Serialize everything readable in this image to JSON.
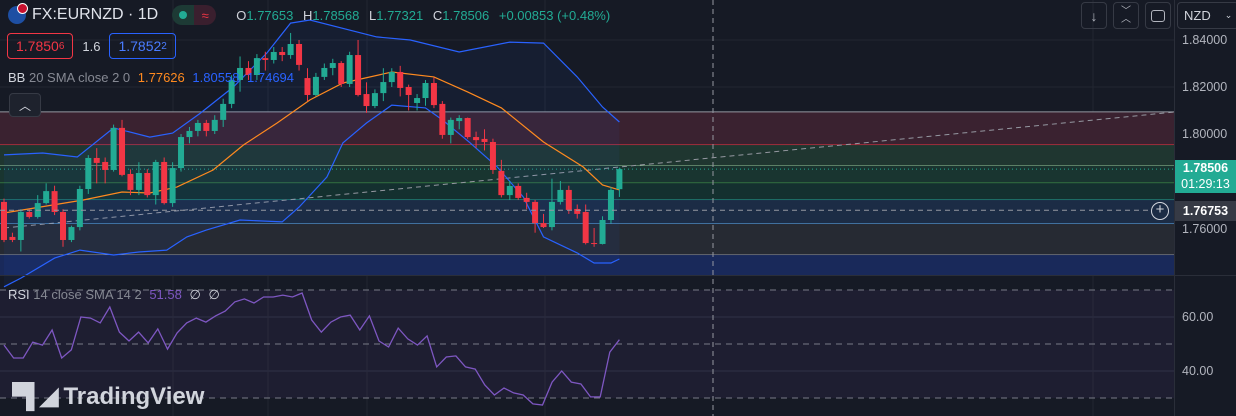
{
  "header": {
    "symbol": "FX:EURNZD · 1D",
    "symbol_icon": "eur-nzd-flag-icon",
    "status_market": "market-open-dot",
    "status_delay": "≈",
    "ohlc": {
      "o_label": "O",
      "o": "1.77653",
      "h_label": "H",
      "h": "1.78568",
      "l_label": "L",
      "l": "1.77321",
      "c_label": "C",
      "c": "1.78506",
      "change": "+0.00853 (+0.48%)"
    },
    "sell_price_main": "1.7850",
    "sell_price_pip": "6",
    "spread": "1.6",
    "buy_price_main": "1.7852",
    "buy_price_pip": "2",
    "bb_legend": {
      "name": "BB",
      "params": "20 SMA close 2 0",
      "basis": "1.77626",
      "upper": "1.80558",
      "lower": "1.74694"
    },
    "collapse_icon": "chevron-up-icon"
  },
  "rsi_legend": {
    "name": "RSI",
    "params": "14 close SMA 14 2",
    "value": "51.58",
    "extra1": "∅",
    "extra2": "∅"
  },
  "toolbar": {
    "buttons": [
      "arrow-down-icon",
      "collapse-arrows-icon",
      "fullscreen-icon"
    ],
    "currency": "NZD"
  },
  "price_axis": {
    "ticks": [
      "1.84000",
      "1.82000",
      "1.80000",
      "1.76000"
    ],
    "last_price": "1.78506",
    "countdown": "01:29:13",
    "crosshair_price": "1.76753"
  },
  "rsi_axis": {
    "ticks": [
      "60.00",
      "40.00"
    ]
  },
  "watermark": "TradingView",
  "colors": {
    "up": "#22ab94",
    "down": "#f23645",
    "bb_basis": "#ff8a1f",
    "bb_band": "#2962ff",
    "rsi": "#7e57c2",
    "background": "#161a25"
  },
  "chart_data": {
    "type": "candlestick",
    "ylim": [
      1.74,
      1.857
    ],
    "yticks": [
      1.84,
      1.82,
      1.8,
      1.78,
      1.76
    ],
    "candles": [
      [
        1.7711,
        1.7725,
        1.754,
        1.7549
      ],
      [
        1.7562,
        1.758,
        1.754,
        1.7549
      ],
      [
        1.7549,
        1.768,
        1.75,
        1.7668
      ],
      [
        1.7668,
        1.768,
        1.764,
        1.7647
      ],
      [
        1.7647,
        1.774,
        1.764,
        1.7706
      ],
      [
        1.7706,
        1.779,
        1.77,
        1.7757
      ],
      [
        1.7757,
        1.778,
        1.7655,
        1.7668
      ],
      [
        1.7668,
        1.768,
        1.752,
        1.7549
      ],
      [
        1.7549,
        1.761,
        1.754,
        1.7604
      ],
      [
        1.7604,
        1.778,
        1.759,
        1.7766
      ],
      [
        1.7766,
        1.791,
        1.7745,
        1.7898
      ],
      [
        1.7898,
        1.794,
        1.779,
        1.7877
      ],
      [
        1.7881,
        1.79,
        1.779,
        1.7847
      ],
      [
        1.7847,
        1.804,
        1.784,
        1.8026
      ],
      [
        1.8026,
        1.806,
        1.782,
        1.7826
      ],
      [
        1.783,
        1.785,
        1.774,
        1.7762
      ],
      [
        1.7762,
        1.788,
        1.774,
        1.7834
      ],
      [
        1.7834,
        1.785,
        1.773,
        1.774
      ],
      [
        1.774,
        1.789,
        1.77,
        1.7881
      ],
      [
        1.7881,
        1.79,
        1.77,
        1.7706
      ],
      [
        1.7706,
        1.788,
        1.769,
        1.7855
      ],
      [
        1.7855,
        1.8,
        1.784,
        1.7987
      ],
      [
        1.7987,
        1.803,
        1.796,
        1.8013
      ],
      [
        1.8013,
        1.806,
        1.799,
        1.8047
      ],
      [
        1.8047,
        1.806,
        1.799,
        1.8013
      ],
      [
        1.8013,
        1.808,
        1.8,
        1.806
      ],
      [
        1.806,
        1.815,
        1.803,
        1.8128
      ],
      [
        1.8128,
        1.825,
        1.811,
        1.823
      ],
      [
        1.823,
        1.833,
        1.818,
        1.8281
      ],
      [
        1.8281,
        1.831,
        1.823,
        1.8251
      ],
      [
        1.8251,
        1.834,
        1.823,
        1.8323
      ],
      [
        1.8323,
        1.835,
        1.827,
        1.8315
      ],
      [
        1.8315,
        1.837,
        1.83,
        1.8349
      ],
      [
        1.8349,
        1.837,
        1.831,
        1.8336
      ],
      [
        1.8336,
        1.843,
        1.832,
        1.8383
      ],
      [
        1.8383,
        1.84,
        1.827,
        1.8294
      ],
      [
        1.8238,
        1.828,
        1.814,
        1.8166
      ],
      [
        1.8166,
        1.826,
        1.816,
        1.8243
      ],
      [
        1.8243,
        1.83,
        1.823,
        1.8281
      ],
      [
        1.8281,
        1.832,
        1.825,
        1.8302
      ],
      [
        1.8302,
        1.831,
        1.82,
        1.8213
      ],
      [
        1.8213,
        1.835,
        1.82,
        1.8336
      ],
      [
        1.8336,
        1.84,
        1.816,
        1.8166
      ],
      [
        1.817,
        1.822,
        1.809,
        1.8119
      ],
      [
        1.8119,
        1.819,
        1.811,
        1.8174
      ],
      [
        1.8174,
        1.828,
        1.814,
        1.8221
      ],
      [
        1.8221,
        1.828,
        1.82,
        1.8264
      ],
      [
        1.8264,
        1.829,
        1.816,
        1.8196
      ],
      [
        1.82,
        1.821,
        1.81,
        1.8166
      ],
      [
        1.8132,
        1.817,
        1.81,
        1.8153
      ],
      [
        1.8153,
        1.823,
        1.812,
        1.8217
      ],
      [
        1.8217,
        1.824,
        1.811,
        1.8123
      ],
      [
        1.8128,
        1.814,
        1.798,
        1.7996
      ],
      [
        1.7996,
        1.807,
        1.796,
        1.806
      ],
      [
        1.8055,
        1.808,
        1.802,
        1.8068
      ],
      [
        1.8068,
        1.807,
        1.798,
        1.7987
      ],
      [
        1.7987,
        1.801,
        1.794,
        1.7974
      ],
      [
        1.7979,
        1.802,
        1.793,
        1.7966
      ],
      [
        1.7966,
        1.798,
        1.783,
        1.7847
      ],
      [
        1.7843,
        1.789,
        1.773,
        1.774
      ],
      [
        1.774,
        1.78,
        1.772,
        1.7779
      ],
      [
        1.7779,
        1.779,
        1.772,
        1.7728
      ],
      [
        1.7728,
        1.775,
        1.768,
        1.7711
      ],
      [
        1.7711,
        1.772,
        1.758,
        1.7621
      ],
      [
        1.7621,
        1.766,
        1.76,
        1.7604
      ],
      [
        1.7604,
        1.781,
        1.759,
        1.7711
      ],
      [
        1.7711,
        1.78,
        1.77,
        1.7762
      ],
      [
        1.7762,
        1.778,
        1.766,
        1.7677
      ],
      [
        1.7681,
        1.77,
        1.764,
        1.766
      ],
      [
        1.7668,
        1.77,
        1.753,
        1.7536
      ],
      [
        1.7536,
        1.76,
        1.752,
        1.7532
      ],
      [
        1.7532,
        1.765,
        1.753,
        1.7634
      ],
      [
        1.7634,
        1.7775,
        1.762,
        1.7762
      ],
      [
        1.77653,
        1.78568,
        1.77321,
        1.78506
      ]
    ],
    "bb_upper": [
      [
        0,
        1.7911
      ],
      [
        4.6,
        1.7919
      ],
      [
        8.7,
        1.7902
      ],
      [
        13,
        1.8026
      ],
      [
        17.3,
        1.7987
      ],
      [
        20,
        1.8004
      ],
      [
        23.3,
        1.8089
      ],
      [
        27.2,
        1.82
      ],
      [
        31.2,
        1.8345
      ],
      [
        34,
        1.8472
      ],
      [
        36.3,
        1.8485
      ],
      [
        44.2,
        1.8413
      ],
      [
        48.2,
        1.84
      ],
      [
        54,
        1.8349
      ],
      [
        60,
        1.8391
      ],
      [
        64,
        1.8387
      ],
      [
        68,
        1.8243
      ],
      [
        71,
        1.8115
      ],
      [
        73,
        1.8051
      ]
    ],
    "bb_basis": [
      [
        0,
        1.7664
      ],
      [
        9.4,
        1.7719
      ],
      [
        14,
        1.7753
      ],
      [
        17.3,
        1.7749
      ],
      [
        20.5,
        1.7774
      ],
      [
        24.8,
        1.7847
      ],
      [
        28.4,
        1.7953
      ],
      [
        32.4,
        1.8047
      ],
      [
        36.3,
        1.8145
      ],
      [
        40.2,
        1.8217
      ],
      [
        46,
        1.8264
      ],
      [
        51,
        1.8243
      ],
      [
        55,
        1.8179
      ],
      [
        59,
        1.8111
      ],
      [
        64,
        1.7966
      ],
      [
        68.7,
        1.786
      ],
      [
        71,
        1.7783
      ],
      [
        73,
        1.7762
      ]
    ],
    "bb_lower": [
      [
        0,
        1.735
      ],
      [
        2,
        1.7387
      ],
      [
        6,
        1.7472
      ],
      [
        9,
        1.7506
      ],
      [
        13,
        1.7485
      ],
      [
        16,
        1.7498
      ],
      [
        19.3,
        1.7506
      ],
      [
        21.7,
        1.7562
      ],
      [
        24,
        1.7591
      ],
      [
        28,
        1.7634
      ],
      [
        33,
        1.7626
      ],
      [
        35,
        1.7689
      ],
      [
        38.3,
        1.7817
      ],
      [
        40.2,
        1.7962
      ],
      [
        43,
        1.8047
      ],
      [
        46,
        1.8123
      ],
      [
        50,
        1.8111
      ],
      [
        52,
        1.806
      ],
      [
        55.3,
        1.7962
      ],
      [
        58.5,
        1.786
      ],
      [
        61.6,
        1.7732
      ],
      [
        64,
        1.7562
      ],
      [
        68,
        1.7494
      ],
      [
        70,
        1.7451
      ],
      [
        72,
        1.7451
      ],
      [
        73,
        1.7468
      ]
    ],
    "zones": [
      {
        "top": 1.8094,
        "bottom": 1.7953,
        "fill": "#3a2230",
        "line": "#f23645",
        "top_line": "#9598a1"
      },
      {
        "top": 1.7953,
        "bottom": 1.7864,
        "fill": "#1f3630",
        "line": "#a5d6a7"
      },
      {
        "top": 1.7864,
        "bottom": 1.7791,
        "fill": "#193530",
        "line": "#4caf50"
      },
      {
        "top": 1.7791,
        "bottom": 1.7719,
        "fill": "#14302f",
        "line": "#26a69a"
      },
      {
        "top": 1.7719,
        "bottom": 1.7617,
        "fill": "#1c2c45",
        "line": "#64b5f6"
      },
      {
        "top": 1.7617,
        "bottom": 1.7485,
        "fill": "#262a33",
        "line": "#9598a1"
      },
      {
        "top": 1.7485,
        "bottom": 1.74,
        "fill": "#19295a",
        "line": "#19295a"
      }
    ],
    "trendline": [
      [
        0,
        1.76
      ],
      [
        139,
        1.8094
      ]
    ],
    "crosshair_price": 1.76753,
    "rsi": {
      "ylim": [
        22,
        74
      ],
      "levels": [
        70,
        50,
        30
      ],
      "values": [
        49.6,
        44.8,
        44.8,
        50.7,
        49.6,
        55.2,
        44.8,
        47.8,
        60,
        59.6,
        57.8,
        63.7,
        54.4,
        51.1,
        54.4,
        50.4,
        55.6,
        48.1,
        54.1,
        57.8,
        59.6,
        58.1,
        60.4,
        62.2,
        65.6,
        66.7,
        65.2,
        67.4,
        67.4,
        68.1,
        67.4,
        68.9,
        58.9,
        54.4,
        58.1,
        60,
        60.7,
        55.2,
        60.4,
        51.1,
        48.9,
        55.9,
        51.9,
        49.6,
        53,
        41.5,
        45.2,
        45.6,
        41.5,
        40.7,
        34.8,
        31.1,
        33.7,
        31.9,
        31.1,
        27.8,
        27.4,
        35.9,
        40,
        35.9,
        35.2,
        30.4,
        30.4,
        47,
        51.58
      ]
    }
  }
}
